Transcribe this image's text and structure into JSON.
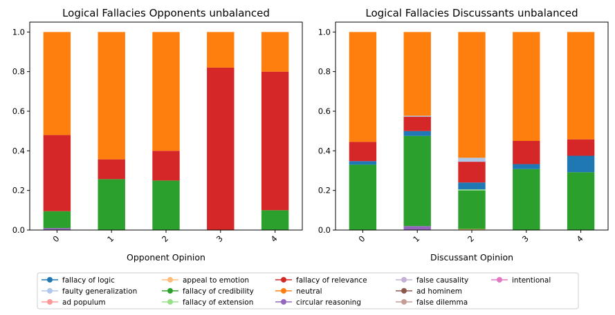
{
  "legend": [
    {
      "label": " fallacy of logic",
      "color": "#1f77b4"
    },
    {
      "label": " faulty generalization",
      "color": "#aec7e8"
    },
    {
      "label": " ad populum",
      "color": "#ff9896"
    },
    {
      "label": " appeal to emotion",
      "color": "#ffbb78"
    },
    {
      "label": " fallacy of credibility",
      "color": "#2ca02c"
    },
    {
      "label": " fallacy of extension",
      "color": "#98df8a"
    },
    {
      "label": " fallacy of relevance",
      "color": "#d62728"
    },
    {
      "label": "neutral",
      "color": "#ff7f0e"
    },
    {
      "label": " circular reasoning",
      "color": "#9467bd"
    },
    {
      "label": " false causality",
      "color": "#c5b0d5"
    },
    {
      "label": " ad hominem",
      "color": "#8c564b"
    },
    {
      "label": " false dilemma",
      "color": "#c49c94"
    },
    {
      "label": " intentional",
      "color": "#e377c2"
    }
  ],
  "chart_data": [
    {
      "type": "bar",
      "stacked": true,
      "title": "Logical Fallacies Opponents unbalanced",
      "xlabel": "Opponent Opinion",
      "ylabel": "",
      "ylim": [
        0,
        1.05
      ],
      "yticks": [
        "0.0",
        "0.2",
        "0.4",
        "0.6",
        "0.8",
        "1.0"
      ],
      "categories": [
        "0",
        "1",
        "2",
        "3",
        "4"
      ],
      "series": [
        {
          "name": " circular reasoning",
          "values": [
            0.01,
            0,
            0,
            0,
            0
          ]
        },
        {
          "name": " fallacy of credibility",
          "values": [
            0.085,
            0.257,
            0.25,
            0,
            0.1
          ]
        },
        {
          "name": " fallacy of relevance",
          "values": [
            0.385,
            0.1,
            0.15,
            0.82,
            0.7
          ]
        },
        {
          "name": "neutral",
          "values": [
            0.52,
            0.643,
            0.6,
            0.18,
            0.2
          ]
        }
      ]
    },
    {
      "type": "bar",
      "stacked": true,
      "title": "Logical Fallacies Discussants unbalanced",
      "xlabel": "Discussant Opinion",
      "ylabel": "",
      "ylim": [
        0,
        1.05
      ],
      "yticks": [
        "0.0",
        "0.2",
        "0.4",
        "0.6",
        "0.8",
        "1.0"
      ],
      "categories": [
        "0",
        "1",
        "2",
        "3",
        "4"
      ],
      "series": [
        {
          "name": " circular reasoning",
          "values": [
            0,
            0.02,
            0,
            0,
            0
          ]
        },
        {
          "name": " appeal to emotion",
          "values": [
            0,
            0,
            0.005,
            0,
            0
          ]
        },
        {
          "name": " fallacy of credibility",
          "values": [
            0.33,
            0.455,
            0.195,
            0.308,
            0.292
          ]
        },
        {
          "name": " fallacy of extension",
          "values": [
            0,
            0,
            0.005,
            0,
            0
          ]
        },
        {
          "name": " fallacy of logic",
          "values": [
            0.018,
            0.025,
            0.035,
            0.025,
            0.083
          ]
        },
        {
          "name": " fallacy of relevance",
          "values": [
            0.097,
            0.072,
            0.105,
            0.117,
            0.083
          ]
        },
        {
          "name": " faulty generalization",
          "values": [
            0,
            0.005,
            0.02,
            0,
            0
          ]
        },
        {
          "name": "neutral",
          "values": [
            0.555,
            0.423,
            0.635,
            0.55,
            0.542
          ]
        }
      ]
    }
  ]
}
